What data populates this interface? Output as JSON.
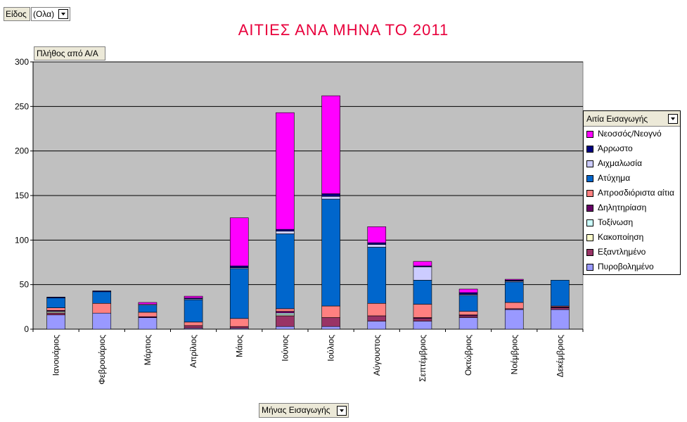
{
  "filter": {
    "label": "Είδος",
    "value": "(Ολα)"
  },
  "title": "ΑΙΤΙΕΣ ΑΝΑ ΜΗΝΑ ΤΟ 2011",
  "data_field": "Πλήθος από Α/Α",
  "x_field": "Μήνας Εισαγωγής",
  "legend_title": "Αιτία Εισαγωγής",
  "chart_data": {
    "type": "bar",
    "stacked": true,
    "title": "ΑΙΤΙΕΣ ΑΝΑ ΜΗΝΑ ΤΟ 2011",
    "xlabel": "Μήνας Εισαγωγής",
    "ylabel": "Πλήθος από Α/Α",
    "ylim": [
      0,
      300
    ],
    "yticks": [
      0,
      50,
      100,
      150,
      200,
      250,
      300
    ],
    "grid": true,
    "legend_position": "right",
    "plot_background": "#c0c0c0",
    "categories": [
      "Ιανουάριος",
      "Φεβρουάριος",
      "Μάρτιος",
      "Απρίλιος",
      "Μάιος",
      "Ιούνιος",
      "Ιούλιος",
      "Αύγουστος",
      "Σεπτέμβριος",
      "Οκτώβριος",
      "Νοέμβριος",
      "Δεκέμβριος"
    ],
    "series": [
      {
        "name": "Πυροβολημένο",
        "color": "#9999ff",
        "values": [
          16,
          18,
          13,
          1,
          1,
          3,
          3,
          9,
          9,
          13,
          22,
          22
        ]
      },
      {
        "name": "Εξαντλημένο",
        "color": "#993366",
        "values": [
          2,
          0,
          0,
          3,
          2,
          12,
          10,
          6,
          3,
          2,
          1,
          2
        ]
      },
      {
        "name": "Κακοποίηση",
        "color": "#ffffcc",
        "values": [
          1,
          0,
          0,
          0,
          0,
          1,
          0,
          0,
          0,
          0,
          0,
          0
        ]
      },
      {
        "name": "Τοξίνωση",
        "color": "#ccffff",
        "values": [
          1,
          0,
          0,
          0,
          0,
          2,
          0,
          0,
          0,
          0,
          0,
          0
        ]
      },
      {
        "name": "Δηλητηρίαση",
        "color": "#660066",
        "values": [
          1,
          0,
          1,
          0,
          0,
          2,
          0,
          0,
          1,
          1,
          0,
          1
        ]
      },
      {
        "name": "Απροσδιόριστα αίτια",
        "color": "#ff8080",
        "values": [
          3,
          11,
          5,
          4,
          9,
          3,
          13,
          14,
          15,
          4,
          7,
          1
        ]
      },
      {
        "name": "Ατύχημα",
        "color": "#0066cc",
        "values": [
          11,
          13,
          8,
          25,
          56,
          84,
          120,
          63,
          27,
          18,
          23,
          29
        ]
      },
      {
        "name": "Αιχμαλωσία",
        "color": "#ccccff",
        "values": [
          0,
          0,
          1,
          1,
          1,
          3,
          3,
          3,
          15,
          1,
          1,
          0
        ]
      },
      {
        "name": "Άρρωστο",
        "color": "#000080",
        "values": [
          1,
          1,
          0,
          1,
          2,
          2,
          3,
          2,
          1,
          2,
          1,
          0
        ]
      },
      {
        "name": "Νεοσσός/Νεογνό",
        "color": "#ff00ff",
        "values": [
          0,
          0,
          2,
          2,
          54,
          131,
          110,
          18,
          5,
          4,
          1,
          0
        ]
      }
    ]
  }
}
